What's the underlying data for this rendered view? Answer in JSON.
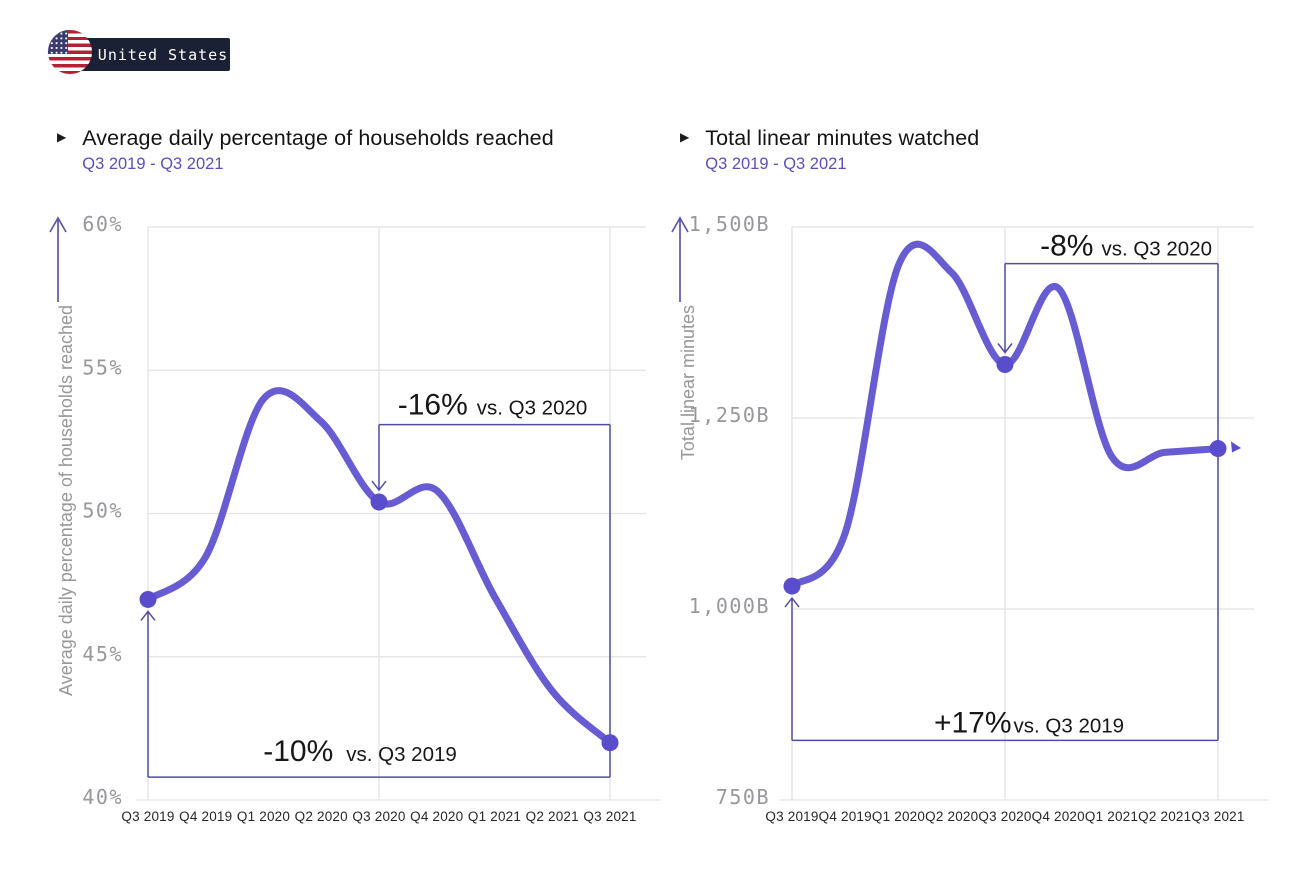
{
  "badge": {
    "label": "United States"
  },
  "glyphs": {
    "bullet": "▶"
  },
  "colors": {
    "line": "#685CD2",
    "dot": "#5A4DCB",
    "bracket": "#524D9E",
    "grid": "#E2E2E6",
    "axis_text": "#97979C",
    "axis_arrow": "#5E56AB",
    "x_label": "#28282C",
    "annotation_text": "#17171A",
    "title": "#141417",
    "subtitle": "#5A50BA",
    "badge_bg": "#1B2134",
    "badge_text": "#FFFFFF"
  },
  "chart_data": [
    {
      "type": "line",
      "title": "Average daily percentage of households reached",
      "subtitle": "Q3 2019 - Q3 2021",
      "ylabel": "Average daily percentage of households reached",
      "xlabel": "",
      "categories": [
        "Q3 2019",
        "Q4 2019",
        "Q1 2020",
        "Q2 2020",
        "Q3 2020",
        "Q4 2020",
        "Q1 2021",
        "Q2 2021",
        "Q3 2021"
      ],
      "values": [
        47.0,
        48.5,
        54.0,
        53.2,
        50.4,
        50.8,
        47.1,
        43.8,
        42.0
      ],
      "ylim": [
        40,
        60
      ],
      "grid": true,
      "yticks": [
        {
          "value": 60,
          "label": "60%"
        },
        {
          "value": 55,
          "label": "55%"
        },
        {
          "value": 50,
          "label": "50%"
        },
        {
          "value": 45,
          "label": "45%"
        },
        {
          "value": 40,
          "label": "40%"
        }
      ],
      "gridline_categories": [
        "Q3 2019",
        "Q3 2020",
        "Q3 2021"
      ],
      "marked_points": [
        "Q3 2019",
        "Q3 2020",
        "Q3 2021"
      ],
      "annotations": [
        {
          "big": "-16%",
          "small": "vs. Q3 2020",
          "from_category": "Q3 2020",
          "to_category": "Q3 2021",
          "bracket_value": 53.1,
          "position": "top"
        },
        {
          "big": "-10%",
          "small": "vs. Q3 2019",
          "from_category": "Q3 2019",
          "to_category": "Q3 2021",
          "bracket_value": 40.8,
          "position": "bottom"
        }
      ],
      "end_arrow": false
    },
    {
      "type": "line",
      "title": "Total linear minutes watched",
      "subtitle": "Q3 2019 - Q3 2021",
      "ylabel": "Total linear minutes",
      "xlabel": "",
      "categories": [
        "Q3 2019",
        "Q4 2019",
        "Q1 2020",
        "Q2 2020",
        "Q3 2020",
        "Q4 2020",
        "Q1 2021",
        "Q2 2021",
        "Q3 2021"
      ],
      "values": [
        1030,
        1100,
        1450,
        1440,
        1320,
        1420,
        1200,
        1205,
        1210
      ],
      "ylim": [
        750,
        1500
      ],
      "grid": true,
      "yticks": [
        {
          "value": 1500,
          "label": "1,500B"
        },
        {
          "value": 1250,
          "label": "1,250B"
        },
        {
          "value": 1000,
          "label": "1,000B"
        },
        {
          "value": 750,
          "label": "750B"
        }
      ],
      "gridline_categories": [
        "Q3 2019",
        "Q3 2020",
        "Q3 2021"
      ],
      "marked_points": [
        "Q3 2019",
        "Q3 2020",
        "Q3 2021"
      ],
      "annotations": [
        {
          "big": "-8%",
          "small": "vs. Q3 2020",
          "from_category": "Q3 2020",
          "to_category": "Q3 2021",
          "bracket_value": 1452,
          "position": "top"
        },
        {
          "big": "+17%",
          "small": "vs. Q3 2019",
          "from_category": "Q3 2019",
          "to_category": "Q3 2021",
          "bracket_value": 828,
          "position": "bottom"
        }
      ],
      "end_arrow": true
    }
  ]
}
